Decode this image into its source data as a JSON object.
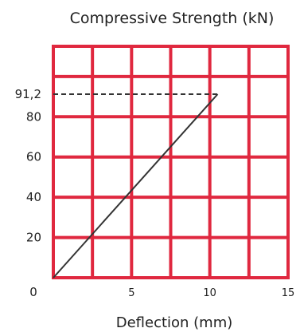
{
  "chart_data": {
    "type": "line",
    "title": "Compressive Strength (kN)",
    "xlabel": "Deflection (mm)",
    "ylabel": "",
    "xlim": [
      0,
      15
    ],
    "ylim": [
      0,
      115
    ],
    "x_ticks": [
      {
        "value": 0,
        "label": "0"
      },
      {
        "value": 5,
        "label": "5"
      },
      {
        "value": 10,
        "label": "10"
      },
      {
        "value": 15,
        "label": "15"
      }
    ],
    "y_ticks": [
      {
        "value": 20,
        "label": "20"
      },
      {
        "value": 40,
        "label": "40"
      },
      {
        "value": 60,
        "label": "60"
      },
      {
        "value": 80,
        "label": "80"
      },
      {
        "value": 91.2,
        "label": "91,2"
      }
    ],
    "grid": true,
    "grid_x": [
      0,
      2.5,
      5,
      7.5,
      10,
      12.5,
      15
    ],
    "grid_y": [
      0,
      20,
      40,
      60,
      80,
      100,
      115
    ],
    "series": [
      {
        "x": [
          0,
          10.5
        ],
        "y": [
          0,
          91.2
        ]
      }
    ],
    "reference_line": {
      "y": 91.2,
      "x_from": 0,
      "x_to": 10.5,
      "style": "dashed"
    },
    "colors": {
      "grid": "#e0283f",
      "line": "#333333",
      "text": "#222222"
    }
  }
}
